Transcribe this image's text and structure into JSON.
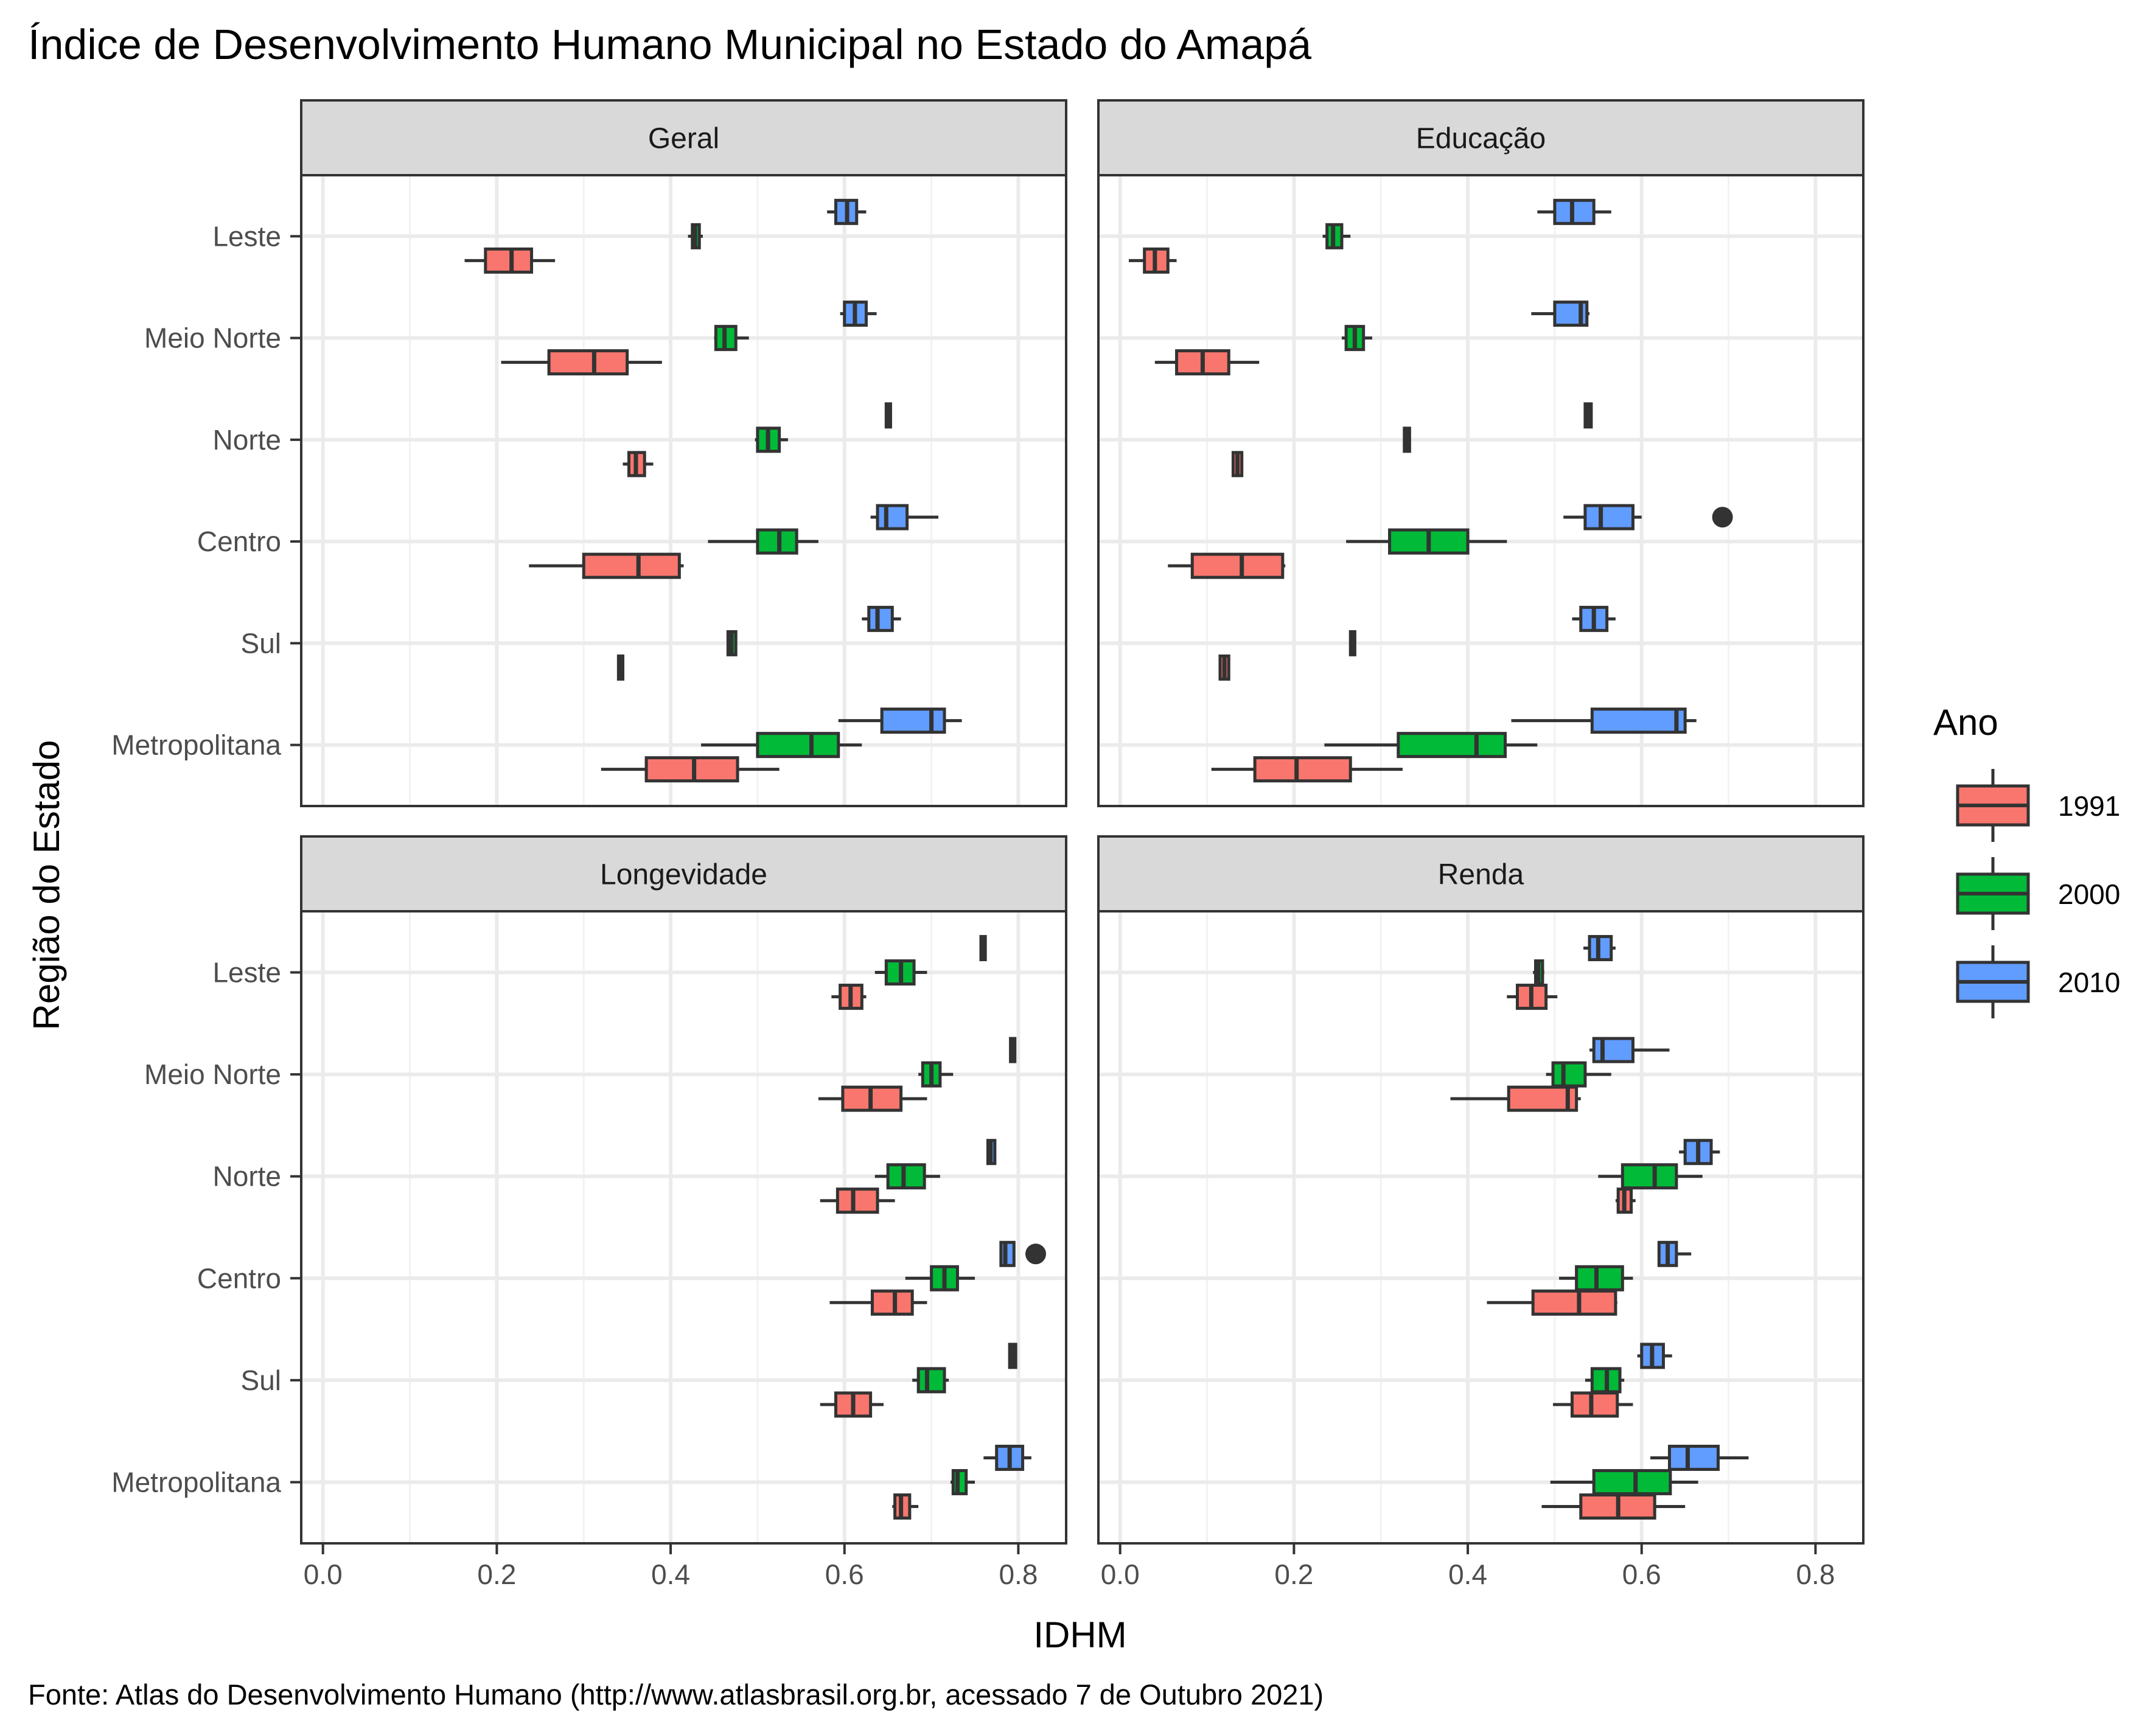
{
  "chart_data": {
    "type": "boxplot",
    "title": "Índice de Desenvolvimento Humano Municipal no Estado do Amapá",
    "caption": "Fonte: Atlas do Desenvolvimento Humano (http://www.atlasbrasil.org.br, acessado 7 de Outubro 2021)",
    "xlabel": "IDHM",
    "ylabel": "Região do Estado",
    "xlim": [
      -0.025,
      0.855
    ],
    "x_ticks": [
      0.0,
      0.2,
      0.4,
      0.6,
      0.8
    ],
    "x_tick_labels": [
      "0.0",
      "0.2",
      "0.4",
      "0.6",
      "0.8"
    ],
    "grid": true,
    "regions": [
      "Leste",
      "Meio Norte",
      "Norte",
      "Centro",
      "Sul",
      "Metropolitana"
    ],
    "legend": {
      "title": "Ano",
      "position": "right",
      "entries": [
        {
          "label": "1991",
          "color": "#F8766D"
        },
        {
          "label": "2000",
          "color": "#00BA38"
        },
        {
          "label": "2010",
          "color": "#619CFF"
        }
      ]
    },
    "panels": [
      {
        "name": "Geral",
        "series": {
          "1991": [
            {
              "region": "Leste",
              "whisker_low": 0.163,
              "q1": 0.187,
              "median": 0.217,
              "q3": 0.24,
              "whisker_high": 0.267,
              "outliers": []
            },
            {
              "region": "Meio Norte",
              "whisker_low": 0.205,
              "q1": 0.26,
              "median": 0.312,
              "q3": 0.35,
              "whisker_high": 0.39,
              "outliers": []
            },
            {
              "region": "Norte",
              "whisker_low": 0.345,
              "q1": 0.352,
              "median": 0.36,
              "q3": 0.37,
              "whisker_high": 0.38,
              "outliers": []
            },
            {
              "region": "Centro",
              "whisker_low": 0.237,
              "q1": 0.3,
              "median": 0.363,
              "q3": 0.41,
              "whisker_high": 0.415,
              "outliers": []
            },
            {
              "region": "Sul",
              "whisker_low": 0.34,
              "q1": 0.34,
              "median": 0.342,
              "q3": 0.345,
              "whisker_high": 0.345,
              "outliers": []
            },
            {
              "region": "Metropolitana",
              "whisker_low": 0.32,
              "q1": 0.372,
              "median": 0.427,
              "q3": 0.477,
              "whisker_high": 0.525,
              "outliers": []
            }
          ],
          "2000": [
            {
              "region": "Leste",
              "whisker_low": 0.42,
              "q1": 0.425,
              "median": 0.428,
              "q3": 0.433,
              "whisker_high": 0.437,
              "outliers": []
            },
            {
              "region": "Meio Norte",
              "whisker_low": 0.45,
              "q1": 0.452,
              "median": 0.462,
              "q3": 0.475,
              "whisker_high": 0.49,
              "outliers": []
            },
            {
              "region": "Norte",
              "whisker_low": 0.497,
              "q1": 0.5,
              "median": 0.512,
              "q3": 0.525,
              "whisker_high": 0.535,
              "outliers": []
            },
            {
              "region": "Centro",
              "whisker_low": 0.443,
              "q1": 0.5,
              "median": 0.525,
              "q3": 0.545,
              "whisker_high": 0.57,
              "outliers": []
            },
            {
              "region": "Sul",
              "whisker_low": 0.465,
              "q1": 0.466,
              "median": 0.47,
              "q3": 0.475,
              "whisker_high": 0.476,
              "outliers": []
            },
            {
              "region": "Metropolitana",
              "whisker_low": 0.435,
              "q1": 0.5,
              "median": 0.562,
              "q3": 0.593,
              "whisker_high": 0.62,
              "outliers": []
            }
          ],
          "2010": [
            {
              "region": "Leste",
              "whisker_low": 0.58,
              "q1": 0.59,
              "median": 0.603,
              "q3": 0.614,
              "whisker_high": 0.625,
              "outliers": []
            },
            {
              "region": "Meio Norte",
              "whisker_low": 0.595,
              "q1": 0.6,
              "median": 0.612,
              "q3": 0.625,
              "whisker_high": 0.637,
              "outliers": []
            },
            {
              "region": "Norte",
              "whisker_low": 0.648,
              "q1": 0.648,
              "median": 0.651,
              "q3": 0.653,
              "whisker_high": 0.653,
              "outliers": []
            },
            {
              "region": "Centro",
              "whisker_low": 0.63,
              "q1": 0.638,
              "median": 0.648,
              "q3": 0.672,
              "whisker_high": 0.708,
              "outliers": []
            },
            {
              "region": "Sul",
              "whisker_low": 0.62,
              "q1": 0.628,
              "median": 0.638,
              "q3": 0.655,
              "whisker_high": 0.665,
              "outliers": []
            },
            {
              "region": "Metropolitana",
              "whisker_low": 0.593,
              "q1": 0.643,
              "median": 0.7,
              "q3": 0.715,
              "whisker_high": 0.735,
              "outliers": []
            }
          ]
        }
      },
      {
        "name": "Educação",
        "series": {
          "1991": [
            {
              "region": "Leste",
              "whisker_low": 0.01,
              "q1": 0.028,
              "median": 0.04,
              "q3": 0.055,
              "whisker_high": 0.065,
              "outliers": []
            },
            {
              "region": "Meio Norte",
              "whisker_low": 0.04,
              "q1": 0.065,
              "median": 0.095,
              "q3": 0.125,
              "whisker_high": 0.16,
              "outliers": []
            },
            {
              "region": "Norte",
              "whisker_low": 0.13,
              "q1": 0.13,
              "median": 0.135,
              "q3": 0.14,
              "whisker_high": 0.14,
              "outliers": []
            },
            {
              "region": "Centro",
              "whisker_low": 0.055,
              "q1": 0.083,
              "median": 0.14,
              "q3": 0.187,
              "whisker_high": 0.19,
              "outliers": []
            },
            {
              "region": "Sul",
              "whisker_low": 0.115,
              "q1": 0.115,
              "median": 0.12,
              "q3": 0.125,
              "whisker_high": 0.125,
              "outliers": []
            },
            {
              "region": "Metropolitana",
              "whisker_low": 0.105,
              "q1": 0.155,
              "median": 0.203,
              "q3": 0.265,
              "whisker_high": 0.325,
              "outliers": []
            }
          ],
          "2000": [
            {
              "region": "Leste",
              "whisker_low": 0.233,
              "q1": 0.238,
              "median": 0.245,
              "q3": 0.255,
              "whisker_high": 0.265,
              "outliers": []
            },
            {
              "region": "Meio Norte",
              "whisker_low": 0.255,
              "q1": 0.26,
              "median": 0.27,
              "q3": 0.28,
              "whisker_high": 0.29,
              "outliers": []
            },
            {
              "region": "Norte",
              "whisker_low": 0.327,
              "q1": 0.327,
              "median": 0.33,
              "q3": 0.333,
              "whisker_high": 0.333,
              "outliers": []
            },
            {
              "region": "Centro",
              "whisker_low": 0.26,
              "q1": 0.31,
              "median": 0.355,
              "q3": 0.4,
              "whisker_high": 0.445,
              "outliers": []
            },
            {
              "region": "Sul",
              "whisker_low": 0.265,
              "q1": 0.265,
              "median": 0.268,
              "q3": 0.27,
              "whisker_high": 0.27,
              "outliers": []
            },
            {
              "region": "Metropolitana",
              "whisker_low": 0.235,
              "q1": 0.32,
              "median": 0.41,
              "q3": 0.443,
              "whisker_high": 0.48,
              "outliers": []
            }
          ],
          "2010": [
            {
              "region": "Leste",
              "whisker_low": 0.48,
              "q1": 0.5,
              "median": 0.52,
              "q3": 0.545,
              "whisker_high": 0.565,
              "outliers": []
            },
            {
              "region": "Meio Norte",
              "whisker_low": 0.473,
              "q1": 0.5,
              "median": 0.53,
              "q3": 0.537,
              "whisker_high": 0.54,
              "outliers": []
            },
            {
              "region": "Norte",
              "whisker_low": 0.535,
              "q1": 0.535,
              "median": 0.538,
              "q3": 0.542,
              "whisker_high": 0.542,
              "outliers": []
            },
            {
              "region": "Centro",
              "whisker_low": 0.51,
              "q1": 0.535,
              "median": 0.553,
              "q3": 0.59,
              "whisker_high": 0.6,
              "outliers": [
                0.693
              ]
            },
            {
              "region": "Sul",
              "whisker_low": 0.52,
              "q1": 0.53,
              "median": 0.545,
              "q3": 0.56,
              "whisker_high": 0.57,
              "outliers": []
            },
            {
              "region": "Metropolitana",
              "whisker_low": 0.45,
              "q1": 0.543,
              "median": 0.64,
              "q3": 0.65,
              "whisker_high": 0.663,
              "outliers": []
            }
          ]
        }
      },
      {
        "name": "Longevidade",
        "series": {
          "1991": [
            {
              "region": "Leste",
              "whisker_low": 0.585,
              "q1": 0.595,
              "median": 0.607,
              "q3": 0.62,
              "whisker_high": 0.625,
              "outliers": []
            },
            {
              "region": "Meio Norte",
              "whisker_low": 0.57,
              "q1": 0.598,
              "median": 0.63,
              "q3": 0.665,
              "whisker_high": 0.695,
              "outliers": []
            },
            {
              "region": "Norte",
              "whisker_low": 0.572,
              "q1": 0.592,
              "median": 0.61,
              "q3": 0.638,
              "whisker_high": 0.658,
              "outliers": []
            },
            {
              "region": "Centro",
              "whisker_low": 0.583,
              "q1": 0.632,
              "median": 0.658,
              "q3": 0.678,
              "whisker_high": 0.695,
              "outliers": []
            },
            {
              "region": "Sul",
              "whisker_low": 0.572,
              "q1": 0.59,
              "median": 0.61,
              "q3": 0.63,
              "whisker_high": 0.645,
              "outliers": []
            },
            {
              "region": "Metropolitana",
              "whisker_low": 0.655,
              "q1": 0.658,
              "median": 0.665,
              "q3": 0.675,
              "whisker_high": 0.685,
              "outliers": []
            }
          ],
          "2000": [
            {
              "region": "Leste",
              "whisker_low": 0.635,
              "q1": 0.648,
              "median": 0.665,
              "q3": 0.68,
              "whisker_high": 0.695,
              "outliers": []
            },
            {
              "region": "Meio Norte",
              "whisker_low": 0.685,
              "q1": 0.69,
              "median": 0.7,
              "q3": 0.71,
              "whisker_high": 0.725,
              "outliers": []
            },
            {
              "region": "Norte",
              "whisker_low": 0.635,
              "q1": 0.65,
              "median": 0.668,
              "q3": 0.692,
              "whisker_high": 0.71,
              "outliers": []
            },
            {
              "region": "Centro",
              "whisker_low": 0.67,
              "q1": 0.7,
              "median": 0.715,
              "q3": 0.73,
              "whisker_high": 0.75,
              "outliers": []
            },
            {
              "region": "Sul",
              "whisker_low": 0.678,
              "q1": 0.685,
              "median": 0.695,
              "q3": 0.715,
              "whisker_high": 0.72,
              "outliers": []
            },
            {
              "region": "Metropolitana",
              "whisker_low": 0.722,
              "q1": 0.725,
              "median": 0.73,
              "q3": 0.74,
              "whisker_high": 0.75,
              "outliers": []
            }
          ],
          "2010": [
            {
              "region": "Leste",
              "whisker_low": 0.757,
              "q1": 0.757,
              "median": 0.759,
              "q3": 0.762,
              "whisker_high": 0.762,
              "outliers": []
            },
            {
              "region": "Meio Norte",
              "whisker_low": 0.791,
              "q1": 0.791,
              "median": 0.793,
              "q3": 0.796,
              "whisker_high": 0.796,
              "outliers": []
            },
            {
              "region": "Norte",
              "whisker_low": 0.765,
              "q1": 0.765,
              "median": 0.768,
              "q3": 0.773,
              "whisker_high": 0.773,
              "outliers": []
            },
            {
              "region": "Centro",
              "whisker_low": 0.78,
              "q1": 0.78,
              "median": 0.785,
              "q3": 0.795,
              "whisker_high": 0.795,
              "outliers": [
                0.82
              ]
            },
            {
              "region": "Sul",
              "whisker_low": 0.79,
              "q1": 0.79,
              "median": 0.793,
              "q3": 0.797,
              "whisker_high": 0.797,
              "outliers": []
            },
            {
              "region": "Metropolitana",
              "whisker_low": 0.76,
              "q1": 0.775,
              "median": 0.79,
              "q3": 0.805,
              "whisker_high": 0.815,
              "outliers": []
            }
          ]
        }
      },
      {
        "name": "Renda",
        "series": {
          "1991": [
            {
              "region": "Leste",
              "whisker_low": 0.445,
              "q1": 0.457,
              "median": 0.473,
              "q3": 0.49,
              "whisker_high": 0.503,
              "outliers": []
            },
            {
              "region": "Meio Norte",
              "whisker_low": 0.38,
              "q1": 0.447,
              "median": 0.515,
              "q3": 0.525,
              "whisker_high": 0.53,
              "outliers": []
            },
            {
              "region": "Norte",
              "whisker_low": 0.57,
              "q1": 0.573,
              "median": 0.58,
              "q3": 0.588,
              "whisker_high": 0.593,
              "outliers": []
            },
            {
              "region": "Centro",
              "whisker_low": 0.422,
              "q1": 0.475,
              "median": 0.528,
              "q3": 0.57,
              "whisker_high": 0.572,
              "outliers": []
            },
            {
              "region": "Sul",
              "whisker_low": 0.498,
              "q1": 0.52,
              "median": 0.542,
              "q3": 0.572,
              "whisker_high": 0.59,
              "outliers": []
            },
            {
              "region": "Metropolitana",
              "whisker_low": 0.485,
              "q1": 0.53,
              "median": 0.573,
              "q3": 0.615,
              "whisker_high": 0.65,
              "outliers": []
            }
          ],
          "2000": [
            {
              "region": "Leste",
              "whisker_low": 0.475,
              "q1": 0.478,
              "median": 0.481,
              "q3": 0.486,
              "whisker_high": 0.488,
              "outliers": []
            },
            {
              "region": "Meio Norte",
              "whisker_low": 0.49,
              "q1": 0.498,
              "median": 0.51,
              "q3": 0.535,
              "whisker_high": 0.565,
              "outliers": []
            },
            {
              "region": "Norte",
              "whisker_low": 0.55,
              "q1": 0.578,
              "median": 0.615,
              "q3": 0.64,
              "whisker_high": 0.67,
              "outliers": []
            },
            {
              "region": "Centro",
              "whisker_low": 0.505,
              "q1": 0.525,
              "median": 0.548,
              "q3": 0.578,
              "whisker_high": 0.59,
              "outliers": []
            },
            {
              "region": "Sul",
              "whisker_low": 0.535,
              "q1": 0.543,
              "median": 0.56,
              "q3": 0.575,
              "whisker_high": 0.58,
              "outliers": []
            },
            {
              "region": "Metropolitana",
              "whisker_low": 0.495,
              "q1": 0.545,
              "median": 0.593,
              "q3": 0.633,
              "whisker_high": 0.665,
              "outliers": []
            }
          ],
          "2010": [
            {
              "region": "Leste",
              "whisker_low": 0.533,
              "q1": 0.54,
              "median": 0.55,
              "q3": 0.565,
              "whisker_high": 0.57,
              "outliers": []
            },
            {
              "region": "Meio Norte",
              "whisker_low": 0.54,
              "q1": 0.545,
              "median": 0.555,
              "q3": 0.59,
              "whisker_high": 0.632,
              "outliers": []
            },
            {
              "region": "Norte",
              "whisker_low": 0.643,
              "q1": 0.65,
              "median": 0.665,
              "q3": 0.68,
              "whisker_high": 0.69,
              "outliers": []
            },
            {
              "region": "Centro",
              "whisker_low": 0.62,
              "q1": 0.62,
              "median": 0.63,
              "q3": 0.64,
              "whisker_high": 0.657,
              "outliers": []
            },
            {
              "region": "Sul",
              "whisker_low": 0.595,
              "q1": 0.6,
              "median": 0.612,
              "q3": 0.625,
              "whisker_high": 0.635,
              "outliers": []
            },
            {
              "region": "Metropolitana",
              "whisker_low": 0.61,
              "q1": 0.632,
              "median": 0.653,
              "q3": 0.688,
              "whisker_high": 0.723,
              "outliers": []
            }
          ]
        }
      }
    ]
  }
}
